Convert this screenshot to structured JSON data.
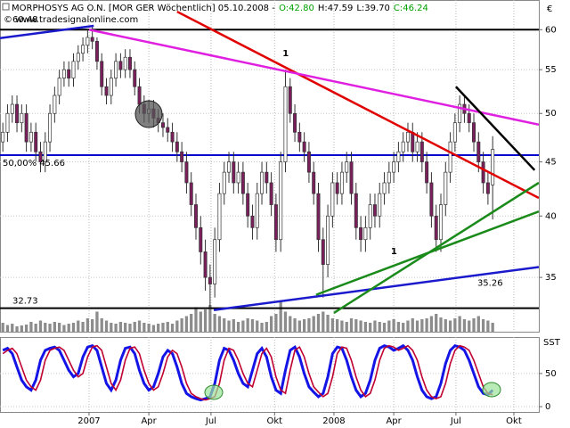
{
  "chart_data": [
    {
      "type": "candlestick",
      "title": "MORPHOSYS AG O.N. [MOR GER  Wöchentlich] 05.10.2008 -",
      "header_values": [
        {
          "text": "O:42.80",
          "color": "#00a000"
        },
        {
          "text": "H:47.59",
          "color": "#000000"
        },
        {
          "text": "L:39.70",
          "color": "#000000"
        },
        {
          "text": "C:46.24",
          "color": "#00a000"
        }
      ],
      "subtitle": "© www.tradesignalonline.com",
      "y_axis_label": "€",
      "log_scale": true,
      "up_color": "#ffffff",
      "down_color": "#7a1f5c",
      "volume_color": "#8c8c8c",
      "x": [
        0,
        1,
        2,
        3,
        4,
        5,
        6,
        7,
        8,
        9,
        10,
        11,
        12,
        13,
        14,
        15,
        16,
        17,
        18,
        19,
        20,
        21,
        22,
        23,
        24,
        25,
        26,
        27,
        28,
        29,
        30,
        31,
        32,
        33,
        34,
        35,
        36,
        37,
        38,
        39,
        40,
        41,
        42,
        43,
        44,
        45,
        46,
        47,
        48,
        49,
        50,
        51,
        52,
        53,
        54,
        55,
        56,
        57,
        58,
        59,
        60,
        61,
        62,
        63,
        64,
        65,
        66,
        67,
        68,
        69,
        70,
        71,
        72,
        73,
        74,
        75,
        76,
        77,
        78,
        79,
        80,
        81,
        82,
        83,
        84,
        85,
        86,
        87,
        88,
        89,
        90,
        91,
        92,
        93,
        94,
        95,
        96,
        97,
        98,
        99,
        100,
        101,
        102,
        103,
        104
      ],
      "open": [
        47,
        48,
        50,
        51,
        49,
        50,
        47,
        48,
        46,
        45,
        47,
        50,
        52,
        54,
        55,
        54,
        56,
        57,
        58,
        59,
        58.5,
        56,
        53,
        52,
        54,
        56,
        55,
        56.5,
        55,
        53,
        51,
        50,
        50.5,
        49.5,
        49,
        48.5,
        48,
        47,
        46,
        45,
        43,
        41,
        39,
        37,
        35,
        34.5,
        38,
        42,
        44,
        45,
        43,
        44,
        42,
        40,
        39,
        42,
        44,
        43,
        41,
        38,
        45,
        53,
        50,
        48,
        47,
        46,
        44,
        42,
        38,
        36,
        40,
        43,
        42,
        44,
        45,
        42,
        39,
        38,
        39,
        41,
        40,
        42,
        43,
        44,
        45,
        46,
        47,
        48,
        46,
        47,
        45,
        43,
        40,
        38,
        41,
        44,
        47,
        49,
        51,
        50,
        49,
        47,
        45,
        43,
        42.8
      ],
      "high": [
        49,
        51,
        52,
        52,
        51,
        51,
        49,
        49,
        47,
        48,
        51,
        53,
        55,
        56,
        56,
        57,
        58,
        59,
        60,
        60.48,
        59,
        57,
        54,
        55,
        57,
        57,
        57.5,
        57.5,
        56,
        54,
        52,
        51.5,
        51.5,
        50.5,
        50,
        49.5,
        49,
        48,
        47,
        46,
        44,
        42,
        40,
        38,
        36,
        39,
        43,
        45,
        46,
        46,
        45,
        45,
        43,
        41,
        43,
        45,
        45,
        44,
        42,
        46,
        55,
        54,
        51,
        49,
        48,
        47,
        45,
        43,
        39,
        41,
        44,
        44,
        45,
        46,
        46,
        43,
        40,
        40,
        42,
        42,
        43,
        44,
        45,
        46,
        47,
        48,
        49,
        49,
        48,
        48,
        46,
        44,
        41,
        42,
        45,
        48,
        50,
        52,
        52,
        51,
        50,
        48,
        46,
        44,
        47.59
      ],
      "low": [
        46,
        47,
        49,
        48,
        48,
        46,
        46,
        45,
        44,
        44,
        46,
        49,
        51,
        53,
        53,
        53,
        55,
        56,
        57,
        57.5,
        55,
        52,
        51,
        51,
        53,
        54,
        54,
        54,
        52,
        50,
        49,
        49,
        48.5,
        48,
        47.5,
        47,
        46,
        45,
        44,
        42,
        40,
        38,
        36,
        34,
        32.73,
        33.5,
        37,
        41,
        43,
        42,
        42,
        41,
        39,
        38,
        38,
        41,
        42,
        40,
        37,
        37,
        44,
        49,
        47,
        46,
        45,
        43,
        41,
        37,
        33.5,
        35,
        39,
        41,
        41,
        43,
        41,
        38,
        37,
        37,
        38,
        39,
        39,
        41,
        42,
        43,
        44,
        45,
        46,
        45,
        45,
        44,
        42,
        39,
        37,
        37,
        40,
        43,
        46,
        48,
        49,
        48,
        46,
        44,
        42,
        41,
        39.7
      ],
      "close": [
        48,
        50,
        51,
        49,
        50,
        47,
        48,
        46,
        45,
        47,
        50,
        52,
        54,
        55,
        54,
        56,
        57,
        58,
        59,
        58.5,
        56,
        53,
        52,
        54,
        56,
        55,
        56.5,
        55,
        53,
        51,
        50,
        50.5,
        49.5,
        49,
        48.5,
        48,
        47,
        46,
        45,
        43,
        41,
        39,
        37,
        35,
        34.5,
        38,
        42,
        44,
        45,
        43,
        44,
        42,
        40,
        39,
        42,
        44,
        43,
        41,
        38,
        45,
        53,
        50,
        48,
        47,
        46,
        44,
        42,
        38,
        36,
        40,
        43,
        42,
        44,
        45,
        42,
        39,
        38,
        39,
        41,
        40,
        42,
        43,
        44,
        45,
        46,
        47,
        48,
        46,
        47,
        45,
        43,
        40,
        38,
        41,
        44,
        47,
        49,
        51,
        50,
        49,
        47,
        45,
        43,
        42,
        46.24
      ],
      "volume": [
        20,
        15,
        18,
        12,
        14,
        16,
        22,
        18,
        25,
        20,
        18,
        22,
        20,
        15,
        18,
        20,
        25,
        22,
        30,
        28,
        45,
        30,
        25,
        20,
        18,
        22,
        20,
        18,
        22,
        25,
        20,
        18,
        15,
        18,
        20,
        22,
        18,
        25,
        30,
        35,
        40,
        55,
        45,
        50,
        60,
        40,
        35,
        30,
        25,
        28,
        22,
        25,
        30,
        28,
        25,
        20,
        22,
        35,
        40,
        70,
        45,
        35,
        30,
        25,
        28,
        30,
        35,
        40,
        45,
        38,
        30,
        28,
        25,
        22,
        30,
        28,
        25,
        22,
        20,
        25,
        22,
        20,
        25,
        28,
        22,
        20,
        25,
        30,
        25,
        28,
        30,
        35,
        40,
        32,
        28,
        25,
        30,
        35,
        28,
        25,
        30,
        35,
        28,
        25,
        20
      ],
      "xlim": [
        -0.6,
        113.8
      ],
      "xticks": [
        {
          "value": 18.3,
          "label": "2007"
        },
        {
          "value": 31,
          "label": "Apr"
        },
        {
          "value": 44.2,
          "label": "Jul"
        },
        {
          "value": 57.7,
          "label": "Okt"
        },
        {
          "value": 70.3,
          "label": "2008"
        },
        {
          "value": 83,
          "label": "Apr"
        },
        {
          "value": 96.2,
          "label": "Jul"
        },
        {
          "value": 108.5,
          "label": "Okt"
        }
      ],
      "ylim": [
        31.1,
        64
      ],
      "yticks": [
        35,
        40,
        45,
        50,
        55,
        60
      ],
      "grid": true,
      "hlines": [
        {
          "value": 60,
          "color": "#000000"
        },
        {
          "value": 45.66,
          "label": "50,00%  45.66",
          "color": "#0000cc"
        },
        {
          "value": 32.73,
          "color": "#000000"
        }
      ],
      "trendlines": [
        {
          "x": [
            37,
            113.8
          ],
          "y": [
            62.4,
            41.6
          ],
          "color": "#e00000",
          "label": "1"
        },
        {
          "x": [
            18.3,
            113.8
          ],
          "y": [
            60,
            48.8
          ],
          "color": "#e020e0"
        },
        {
          "x": [
            -0.6,
            19.3
          ],
          "y": [
            58.9,
            60.5
          ],
          "color": "#1a1acc"
        },
        {
          "x": [
            44.8,
            113.8
          ],
          "y": [
            32.6,
            35.8
          ],
          "color": "#1a1acc",
          "label": "35.26"
        },
        {
          "x": [
            96.2,
            112.9
          ],
          "y": [
            53.0,
            44.2
          ],
          "color": "#000000"
        },
        {
          "x": [
            70.3,
            113.8
          ],
          "y": [
            32.4,
            43.0
          ],
          "color": "#1a8a1a"
        },
        {
          "x": [
            66.5,
            113.8
          ],
          "y": [
            33.7,
            40.4
          ],
          "color": "#1a8a1a",
          "label": "1"
        }
      ]
    },
    {
      "type": "line",
      "y_axis_label": "SST",
      "ylim": [
        -8,
        105
      ],
      "yticks": [
        0,
        50
      ],
      "series": [
        {
          "color": "#1414e6",
          "values": [
            85,
            88,
            80,
            60,
            40,
            30,
            25,
            40,
            70,
            85,
            88,
            90,
            85,
            70,
            55,
            45,
            50,
            75,
            90,
            92,
            85,
            60,
            35,
            25,
            40,
            70,
            88,
            90,
            80,
            55,
            35,
            25,
            30,
            50,
            75,
            85,
            80,
            60,
            35,
            20,
            15,
            12,
            10,
            12,
            15,
            35,
            70,
            88,
            85,
            70,
            50,
            35,
            30,
            55,
            80,
            88,
            75,
            45,
            25,
            20,
            55,
            85,
            90,
            75,
            50,
            30,
            22,
            15,
            20,
            45,
            80,
            90,
            88,
            70,
            45,
            25,
            15,
            20,
            40,
            70,
            88,
            92,
            90,
            85,
            88,
            92,
            85,
            70,
            45,
            25,
            15,
            12,
            15,
            35,
            65,
            85,
            92,
            90,
            85,
            70,
            50,
            30,
            20,
            18,
            25
          ]
        },
        {
          "color": "#c00030",
          "values": [
            80,
            85,
            88,
            80,
            60,
            40,
            30,
            25,
            40,
            70,
            85,
            88,
            90,
            85,
            70,
            55,
            45,
            50,
            75,
            90,
            92,
            85,
            60,
            35,
            25,
            40,
            70,
            88,
            90,
            80,
            55,
            35,
            25,
            30,
            50,
            75,
            85,
            80,
            60,
            35,
            20,
            15,
            12,
            10,
            12,
            15,
            35,
            70,
            88,
            85,
            70,
            50,
            35,
            30,
            55,
            80,
            88,
            75,
            45,
            25,
            20,
            55,
            85,
            90,
            75,
            50,
            30,
            22,
            15,
            20,
            45,
            80,
            90,
            88,
            70,
            45,
            25,
            15,
            20,
            40,
            70,
            88,
            92,
            90,
            85,
            88,
            92,
            85,
            70,
            45,
            25,
            15,
            12,
            15,
            35,
            65,
            85,
            92,
            90,
            85,
            70,
            50,
            30,
            20,
            18
          ]
        }
      ]
    }
  ]
}
